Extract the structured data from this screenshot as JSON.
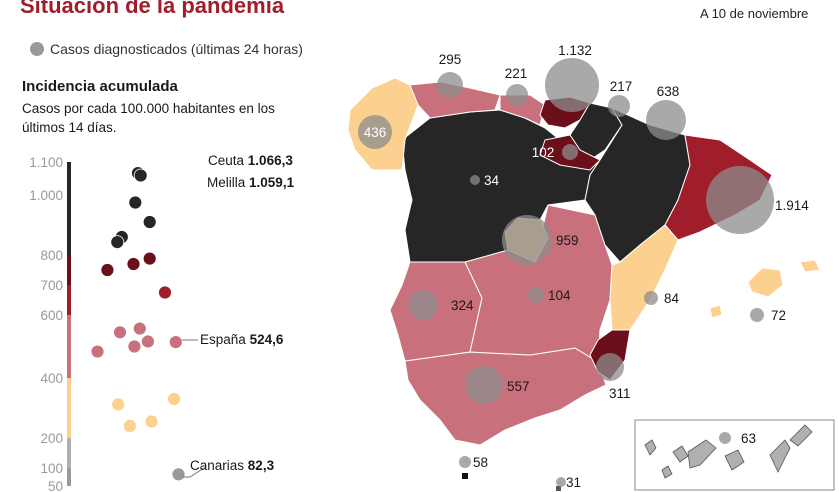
{
  "header": {
    "title": "Situación de la pandemia",
    "date": "A 10 de noviembre"
  },
  "legend": {
    "bubble_label": "Casos diagnosticados (últimas 24 horas)"
  },
  "incidence": {
    "title": "Incidencia acumulada",
    "subtitle": "Casos por cada 100.000 habitantes en los últimos 14 días."
  },
  "colors": {
    "black": "#262626",
    "dark_red": "#6b0f1a",
    "red": "#a01e2b",
    "pink": "#c9707d",
    "light_orange": "#fcd18f",
    "gray": "#9a9a9a",
    "axis_gray": "#b0b0b0",
    "bubble_fill": "#8c8c8c"
  },
  "chart_data": {
    "type": "scatter",
    "title": "Incidencia acumulada",
    "y_ticks": [
      "1.100",
      "1.000",
      "800",
      "700",
      "600",
      "400",
      "200",
      "100",
      "50"
    ],
    "y_tick_values": [
      1100,
      1000,
      800,
      700,
      600,
      400,
      200,
      100,
      50
    ],
    "ylim": [
      40,
      1110
    ],
    "color_bands": [
      {
        "from": 50,
        "to": 100,
        "color": "#9a9a9a"
      },
      {
        "from": 100,
        "to": 200,
        "color": "#b0b0b0"
      },
      {
        "from": 200,
        "to": 400,
        "color": "#fcd18f"
      },
      {
        "from": 400,
        "to": 600,
        "color": "#c9707d"
      },
      {
        "from": 600,
        "to": 700,
        "color": "#a01e2b"
      },
      {
        "from": 700,
        "to": 800,
        "color": "#6b0f1a"
      },
      {
        "from": 800,
        "to": 1100,
        "color": "#262626"
      }
    ],
    "points": [
      {
        "v": 1066.3,
        "color": "#262626",
        "slot": 7
      },
      {
        "v": 1059.1,
        "color": "#262626",
        "slot": 7.3
      },
      {
        "v": 975,
        "color": "#262626",
        "slot": 6.7
      },
      {
        "v": 910,
        "color": "#262626",
        "slot": 8.3
      },
      {
        "v": 860,
        "color": "#262626",
        "slot": 5.2
      },
      {
        "v": 843,
        "color": "#262626",
        "slot": 4.7
      },
      {
        "v": 788,
        "color": "#6b0f1a",
        "slot": 8.3
      },
      {
        "v": 770,
        "color": "#6b0f1a",
        "slot": 6.5
      },
      {
        "v": 750,
        "color": "#6b0f1a",
        "slot": 3.6
      },
      {
        "v": 675,
        "color": "#a01e2b",
        "slot": 10
      },
      {
        "v": 557,
        "color": "#c9707d",
        "slot": 7.2
      },
      {
        "v": 545,
        "color": "#c9707d",
        "slot": 5
      },
      {
        "v": 516,
        "color": "#c9707d",
        "slot": 8.1
      },
      {
        "v": 514,
        "color": "#c9707d",
        "slot": 11.2
      },
      {
        "v": 500,
        "color": "#c9707d",
        "slot": 6.6
      },
      {
        "v": 484,
        "color": "#c9707d",
        "slot": 2.5
      },
      {
        "v": 330,
        "color": "#fcd18f",
        "slot": 11
      },
      {
        "v": 312,
        "color": "#fcd18f",
        "slot": 4.8
      },
      {
        "v": 255,
        "color": "#fcd18f",
        "slot": 8.5
      },
      {
        "v": 240,
        "color": "#fcd18f",
        "slot": 6.1
      },
      {
        "v": 82.3,
        "color": "#9a9a9a",
        "slot": 11.5
      }
    ],
    "annotations": [
      {
        "name": "Ceuta",
        "value": "1.066,3"
      },
      {
        "name": "Melilla",
        "value": "1.059,1"
      },
      {
        "name": "España",
        "value": "524,6"
      },
      {
        "name": "Canarias",
        "value": "82,3"
      }
    ]
  },
  "bubbles": [
    {
      "value": "436",
      "region": "Galicia"
    },
    {
      "value": "295",
      "region": "Asturias"
    },
    {
      "value": "221",
      "region": "Cantabria"
    },
    {
      "value": "1.132",
      "region": "País Vasco"
    },
    {
      "value": "217",
      "region": "Navarra"
    },
    {
      "value": "638",
      "region": "Aragón"
    },
    {
      "value": "102",
      "region": "La Rioja"
    },
    {
      "value": "34",
      "region": "Castilla y León"
    },
    {
      "value": "1.914",
      "region": "Cataluña"
    },
    {
      "value": "959",
      "region": "Madrid"
    },
    {
      "value": "324",
      "region": "Extremadura"
    },
    {
      "value": "104",
      "region": "Castilla-La Mancha"
    },
    {
      "value": "84",
      "region": "C. Valenciana"
    },
    {
      "value": "72",
      "region": "Baleares"
    },
    {
      "value": "311",
      "region": "Murcia"
    },
    {
      "value": "557",
      "region": "Andalucía"
    },
    {
      "value": "58",
      "region": "Ceuta"
    },
    {
      "value": "31",
      "region": "Melilla"
    },
    {
      "value": "63",
      "region": "Canarias"
    }
  ]
}
